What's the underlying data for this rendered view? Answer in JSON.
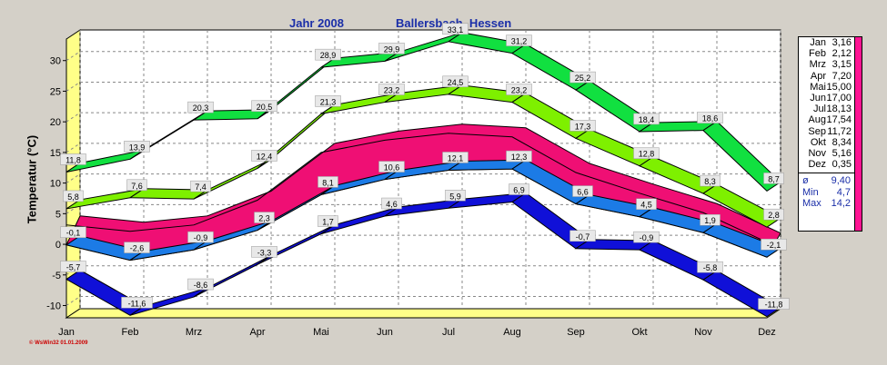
{
  "title_left": "Jahr  2008",
  "title_right": "Ballersbach, Hessen",
  "footer": "© WsWin32  01.01.2009",
  "colors": {
    "max_abs": "#11e040",
    "max_mean": "#7ef000",
    "range_band": "#ef0f74",
    "mean": "#1c7be6",
    "min_abs": "#1010d8",
    "plot_bg": "#ffffff",
    "wall": "#ffff88"
  },
  "legend": {
    "months": [
      {
        "m": "Jan",
        "v": "3,16"
      },
      {
        "m": "Feb",
        "v": "2,12"
      },
      {
        "m": "Mrz",
        "v": "3,15"
      },
      {
        "m": "Apr",
        "v": "7,20"
      },
      {
        "m": "Mai",
        "v": "15,00"
      },
      {
        "m": "Jun",
        "v": "17,00"
      },
      {
        "m": "Jul",
        "v": "18,13"
      },
      {
        "m": "Aug",
        "v": "17,54"
      },
      {
        "m": "Sep",
        "v": "11,72"
      },
      {
        "m": "Okt",
        "v": "8,34"
      },
      {
        "m": "Nov",
        "v": "5,16"
      },
      {
        "m": "Dez",
        "v": "0,35"
      }
    ],
    "stats": [
      {
        "k": "ø",
        "v": "9,40"
      },
      {
        "k": "Min",
        "v": "4,7"
      },
      {
        "k": "Max",
        "v": "14,2"
      }
    ]
  },
  "chart_data": {
    "type": "area",
    "categories": [
      "Jan",
      "Feb",
      "Mrz",
      "Apr",
      "Mai",
      "Jun",
      "Jul",
      "Aug",
      "Sep",
      "Okt",
      "Nov",
      "Dez"
    ],
    "ylabel": "Temperatur  (°C)",
    "ylim": [
      -12,
      35
    ],
    "yticks": [
      -10,
      -5,
      0,
      5,
      10,
      15,
      20,
      25,
      30
    ],
    "grid": true,
    "series": [
      {
        "values": [
          11.8,
          13.9,
          20.3,
          20.5,
          28.9,
          29.9,
          33.1,
          31.2,
          25.2,
          18.4,
          18.6,
          8.7
        ],
        "labels": [
          "11,8",
          "13,9",
          "20,3",
          "20,5",
          "28,9",
          "29,9",
          "33,1",
          "31,2",
          "25,2",
          "18,4",
          "18,6",
          "8,7"
        ]
      },
      {
        "values": [
          5.8,
          7.6,
          7.4,
          12.4,
          21.3,
          23.2,
          24.5,
          23.2,
          17.3,
          12.8,
          8.3,
          2.8
        ],
        "labels": [
          "5,8",
          "7,6",
          "7,4",
          "12,4",
          "21,3",
          "23,2",
          "24,5",
          "23,2",
          "17,3",
          "12,8",
          "8,3",
          "2,8"
        ]
      },
      {
        "values": [
          -0.1,
          -2.6,
          -0.9,
          2.3,
          8.1,
          10.6,
          12.1,
          12.3,
          6.6,
          4.5,
          1.9,
          -2.1
        ],
        "labels": [
          "-0,1",
          "-2,6",
          "-0,9",
          "2,3",
          "8,1",
          "10,6",
          "12,1",
          "12,3",
          "6,6",
          "4,5",
          "1,9",
          "-2,1"
        ]
      },
      {
        "values": [
          -5.7,
          -11.6,
          -8.6,
          -3.3,
          1.7,
          4.6,
          5.9,
          6.9,
          -0.7,
          -0.9,
          -5.8,
          -11.8
        ],
        "labels": [
          "-5,7",
          "-11,6",
          "-8,6",
          "-3,3",
          "1,7",
          "4,6",
          "5,9",
          "6,9",
          "-0,7",
          "-0,9",
          "-5,8",
          "-11,8"
        ]
      }
    ],
    "band_top": [
      3.16,
      2.12,
      3.15,
      7.2,
      15.0,
      17.0,
      18.13,
      17.54,
      11.72,
      8.34,
      5.16,
      0.35
    ]
  }
}
